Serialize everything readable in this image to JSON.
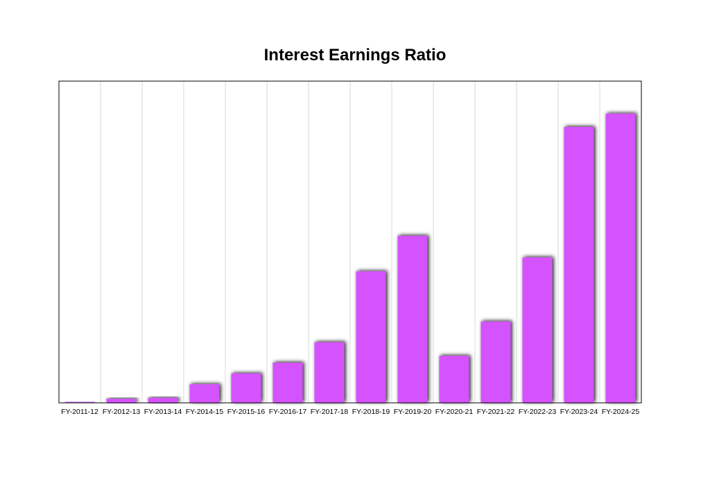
{
  "chart_data": {
    "type": "bar",
    "title": "Interest Earnings Ratio",
    "xlabel": "",
    "ylabel": "",
    "categories": [
      "FY-2011-12",
      "FY-2012-13",
      "FY-2013-14",
      "FY-2014-15",
      "FY-2015-16",
      "FY-2016-17",
      "FY-2017-18",
      "FY-2018-19",
      "FY-2019-20",
      "FY-2020-21",
      "FY-2021-22",
      "FY-2022-23",
      "FY-2023-24",
      "FY-2024-25"
    ],
    "values": [
      0.3,
      1.3,
      1.6,
      6.0,
      9.5,
      13.0,
      19.6,
      42.5,
      54.0,
      15.2,
      26.3,
      47.0,
      89.2,
      93.5
    ],
    "ylim": [
      0,
      104
    ],
    "grid": "vertical",
    "legend": "none",
    "bar_color": "#d552ff",
    "shadow_color": "#000000"
  }
}
